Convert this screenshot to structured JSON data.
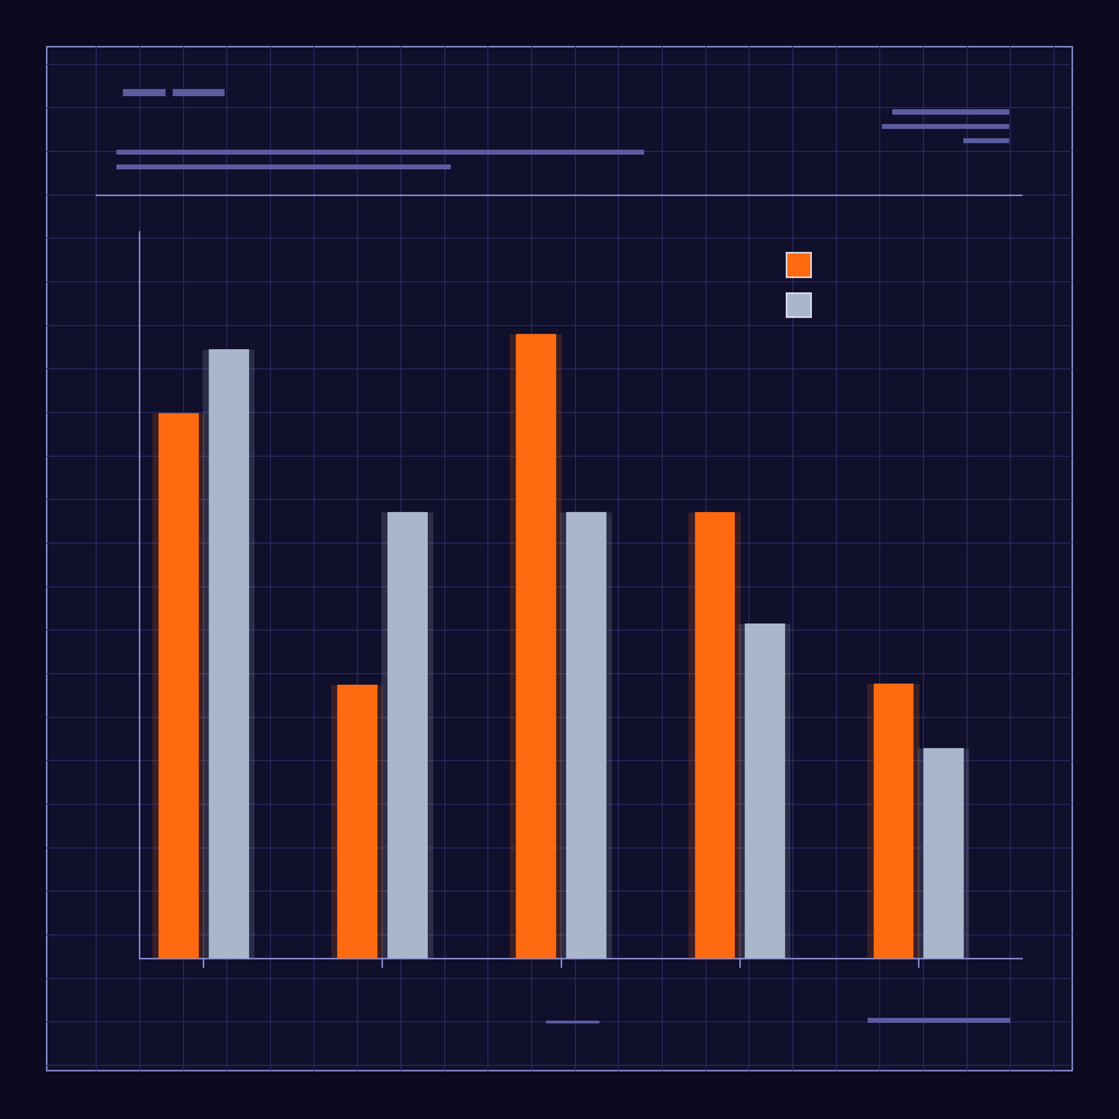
{
  "chart_data": {
    "type": "bar",
    "categories": [
      null,
      null,
      null,
      null,
      null
    ],
    "series": [
      {
        "color": "#ff6a10",
        "values": [
          75,
          37.6,
          85.9,
          61.4,
          37.8
        ]
      },
      {
        "color": "#aab6cc",
        "values": [
          83.8,
          61.4,
          61.4,
          46,
          28.9
        ]
      }
    ],
    "ylim": [
      0,
      100
    ],
    "yticks": [],
    "tick_labels": false
  }
}
